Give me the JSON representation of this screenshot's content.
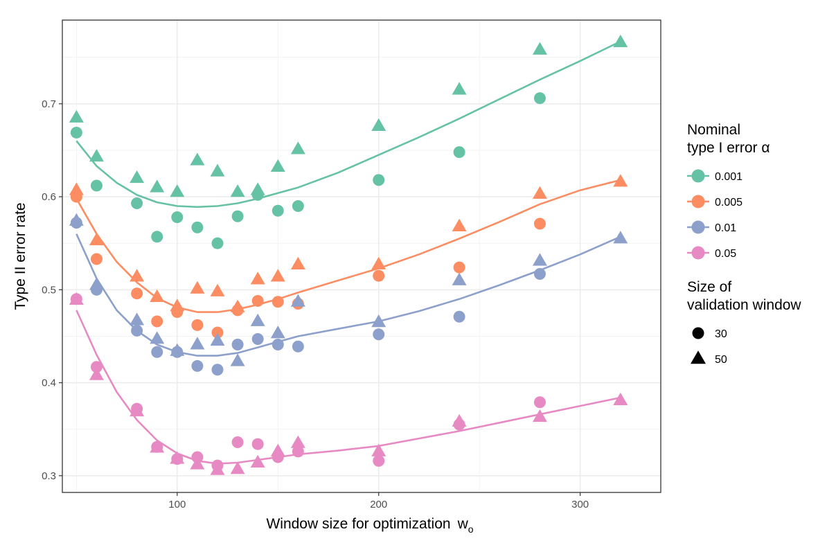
{
  "chart_data": {
    "type": "scatter",
    "xlabel_main": "Window size for optimization",
    "xlabel_var": "w",
    "xlabel_sub": "o",
    "ylabel": "Type II error rate",
    "xlim": [
      43,
      340
    ],
    "ylim": [
      0.282,
      0.79
    ],
    "x_ticks": [
      100,
      200,
      300
    ],
    "x_ticks_minor": [
      50,
      150,
      250
    ],
    "y_ticks": [
      0.3,
      0.4,
      0.5,
      0.6,
      0.7
    ],
    "y_tick_labels": [
      "0.3",
      "0.4",
      "0.5",
      "0.6",
      "0.7"
    ],
    "y_ticks_minor": [
      0.35,
      0.45,
      0.55,
      0.65,
      0.75
    ],
    "x_tick_labels": [
      "100",
      "200",
      "300"
    ],
    "grid": true,
    "legend_position": "right",
    "legend_color_title": [
      "Nominal",
      "type I error α"
    ],
    "legend_shape_title": [
      "Size of",
      "validation window"
    ],
    "series": [
      {
        "name": "0.001",
        "color": "#66c2a5",
        "points_30": [
          [
            50,
            0.669
          ],
          [
            60,
            0.612
          ],
          [
            80,
            0.593
          ],
          [
            90,
            0.557
          ],
          [
            100,
            0.578
          ],
          [
            110,
            0.567
          ],
          [
            120,
            0.55
          ],
          [
            130,
            0.579
          ],
          [
            140,
            0.602
          ],
          [
            150,
            0.585
          ],
          [
            160,
            0.59
          ],
          [
            200,
            0.618
          ],
          [
            240,
            0.648
          ],
          [
            280,
            0.706
          ]
        ],
        "points_50": [
          [
            50,
            0.685
          ],
          [
            60,
            0.643
          ],
          [
            80,
            0.62
          ],
          [
            90,
            0.61
          ],
          [
            100,
            0.605
          ],
          [
            110,
            0.639
          ],
          [
            120,
            0.627
          ],
          [
            130,
            0.605
          ],
          [
            140,
            0.607
          ],
          [
            150,
            0.632
          ],
          [
            160,
            0.651
          ],
          [
            200,
            0.676
          ],
          [
            240,
            0.715
          ],
          [
            280,
            0.758
          ],
          [
            320,
            0.766
          ]
        ],
        "smooth": [
          [
            50,
            0.66
          ],
          [
            60,
            0.633
          ],
          [
            70,
            0.615
          ],
          [
            80,
            0.602
          ],
          [
            90,
            0.594
          ],
          [
            100,
            0.59
          ],
          [
            110,
            0.589
          ],
          [
            120,
            0.59
          ],
          [
            130,
            0.593
          ],
          [
            140,
            0.598
          ],
          [
            150,
            0.604
          ],
          [
            160,
            0.61
          ],
          [
            180,
            0.626
          ],
          [
            200,
            0.645
          ],
          [
            220,
            0.664
          ],
          [
            240,
            0.684
          ],
          [
            260,
            0.705
          ],
          [
            280,
            0.726
          ],
          [
            300,
            0.746
          ],
          [
            320,
            0.767
          ]
        ]
      },
      {
        "name": "0.005",
        "color": "#fc8d62",
        "points_30": [
          [
            50,
            0.6
          ],
          [
            60,
            0.533
          ],
          [
            80,
            0.496
          ],
          [
            90,
            0.466
          ],
          [
            100,
            0.476
          ],
          [
            110,
            0.462
          ],
          [
            120,
            0.454
          ],
          [
            130,
            0.478
          ],
          [
            140,
            0.488
          ],
          [
            150,
            0.487
          ],
          [
            160,
            0.485
          ],
          [
            200,
            0.515
          ],
          [
            240,
            0.524
          ],
          [
            280,
            0.571
          ]
        ],
        "points_50": [
          [
            50,
            0.607
          ],
          [
            60,
            0.553
          ],
          [
            80,
            0.514
          ],
          [
            90,
            0.492
          ],
          [
            100,
            0.482
          ],
          [
            110,
            0.501
          ],
          [
            120,
            0.498
          ],
          [
            130,
            0.481
          ],
          [
            140,
            0.511
          ],
          [
            150,
            0.514
          ],
          [
            160,
            0.527
          ],
          [
            200,
            0.527
          ],
          [
            240,
            0.568
          ],
          [
            280,
            0.603
          ],
          [
            320,
            0.616
          ]
        ],
        "smooth": [
          [
            50,
            0.598
          ],
          [
            60,
            0.56
          ],
          [
            70,
            0.53
          ],
          [
            80,
            0.508
          ],
          [
            90,
            0.491
          ],
          [
            100,
            0.481
          ],
          [
            110,
            0.476
          ],
          [
            120,
            0.476
          ],
          [
            130,
            0.479
          ],
          [
            140,
            0.484
          ],
          [
            150,
            0.49
          ],
          [
            160,
            0.497
          ],
          [
            180,
            0.51
          ],
          [
            200,
            0.523
          ],
          [
            220,
            0.538
          ],
          [
            240,
            0.555
          ],
          [
            260,
            0.573
          ],
          [
            280,
            0.592
          ],
          [
            300,
            0.607
          ],
          [
            320,
            0.618
          ]
        ]
      },
      {
        "name": "0.01",
        "color": "#8da0cb",
        "points_30": [
          [
            50,
            0.572
          ],
          [
            60,
            0.5
          ],
          [
            80,
            0.456
          ],
          [
            90,
            0.433
          ],
          [
            100,
            0.433
          ],
          [
            110,
            0.418
          ],
          [
            120,
            0.414
          ],
          [
            130,
            0.441
          ],
          [
            140,
            0.447
          ],
          [
            150,
            0.441
          ],
          [
            160,
            0.439
          ],
          [
            200,
            0.452
          ],
          [
            240,
            0.471
          ],
          [
            280,
            0.517
          ]
        ],
        "points_50": [
          [
            50,
            0.574
          ],
          [
            60,
            0.505
          ],
          [
            80,
            0.467
          ],
          [
            90,
            0.447
          ],
          [
            100,
            0.434
          ],
          [
            110,
            0.441
          ],
          [
            120,
            0.445
          ],
          [
            130,
            0.423
          ],
          [
            140,
            0.466
          ],
          [
            150,
            0.453
          ],
          [
            160,
            0.487
          ],
          [
            200,
            0.465
          ],
          [
            240,
            0.51
          ],
          [
            280,
            0.531
          ],
          [
            320,
            0.555
          ]
        ],
        "smooth": [
          [
            50,
            0.56
          ],
          [
            60,
            0.512
          ],
          [
            70,
            0.478
          ],
          [
            80,
            0.456
          ],
          [
            90,
            0.441
          ],
          [
            100,
            0.433
          ],
          [
            110,
            0.429
          ],
          [
            120,
            0.429
          ],
          [
            130,
            0.432
          ],
          [
            140,
            0.438
          ],
          [
            150,
            0.444
          ],
          [
            160,
            0.45
          ],
          [
            180,
            0.458
          ],
          [
            200,
            0.466
          ],
          [
            220,
            0.477
          ],
          [
            240,
            0.49
          ],
          [
            260,
            0.505
          ],
          [
            280,
            0.521
          ],
          [
            300,
            0.538
          ],
          [
            320,
            0.557
          ]
        ]
      },
      {
        "name": "0.05",
        "color": "#e78ac3",
        "points_30": [
          [
            50,
            0.49
          ],
          [
            60,
            0.417
          ],
          [
            80,
            0.372
          ],
          [
            90,
            0.331
          ],
          [
            100,
            0.318
          ],
          [
            110,
            0.32
          ],
          [
            120,
            0.311
          ],
          [
            130,
            0.336
          ],
          [
            140,
            0.334
          ],
          [
            150,
            0.32
          ],
          [
            160,
            0.326
          ],
          [
            200,
            0.316
          ],
          [
            240,
            0.355
          ],
          [
            280,
            0.379
          ]
        ],
        "points_50": [
          [
            50,
            0.489
          ],
          [
            60,
            0.408
          ],
          [
            80,
            0.369
          ],
          [
            90,
            0.33
          ],
          [
            100,
            0.318
          ],
          [
            110,
            0.312
          ],
          [
            120,
            0.306
          ],
          [
            130,
            0.307
          ],
          [
            140,
            0.314
          ],
          [
            150,
            0.326
          ],
          [
            160,
            0.335
          ],
          [
            200,
            0.326
          ],
          [
            240,
            0.358
          ],
          [
            280,
            0.363
          ],
          [
            320,
            0.381
          ]
        ],
        "smooth": [
          [
            50,
            0.478
          ],
          [
            60,
            0.43
          ],
          [
            70,
            0.39
          ],
          [
            80,
            0.36
          ],
          [
            90,
            0.338
          ],
          [
            100,
            0.324
          ],
          [
            110,
            0.316
          ],
          [
            120,
            0.313
          ],
          [
            130,
            0.314
          ],
          [
            140,
            0.317
          ],
          [
            150,
            0.32
          ],
          [
            160,
            0.323
          ],
          [
            180,
            0.327
          ],
          [
            200,
            0.332
          ],
          [
            220,
            0.34
          ],
          [
            240,
            0.348
          ],
          [
            260,
            0.357
          ],
          [
            280,
            0.366
          ],
          [
            300,
            0.375
          ],
          [
            320,
            0.384
          ]
        ]
      }
    ],
    "shapes": [
      {
        "label": "30",
        "shape": "circle"
      },
      {
        "label": "50",
        "shape": "triangle"
      }
    ]
  }
}
